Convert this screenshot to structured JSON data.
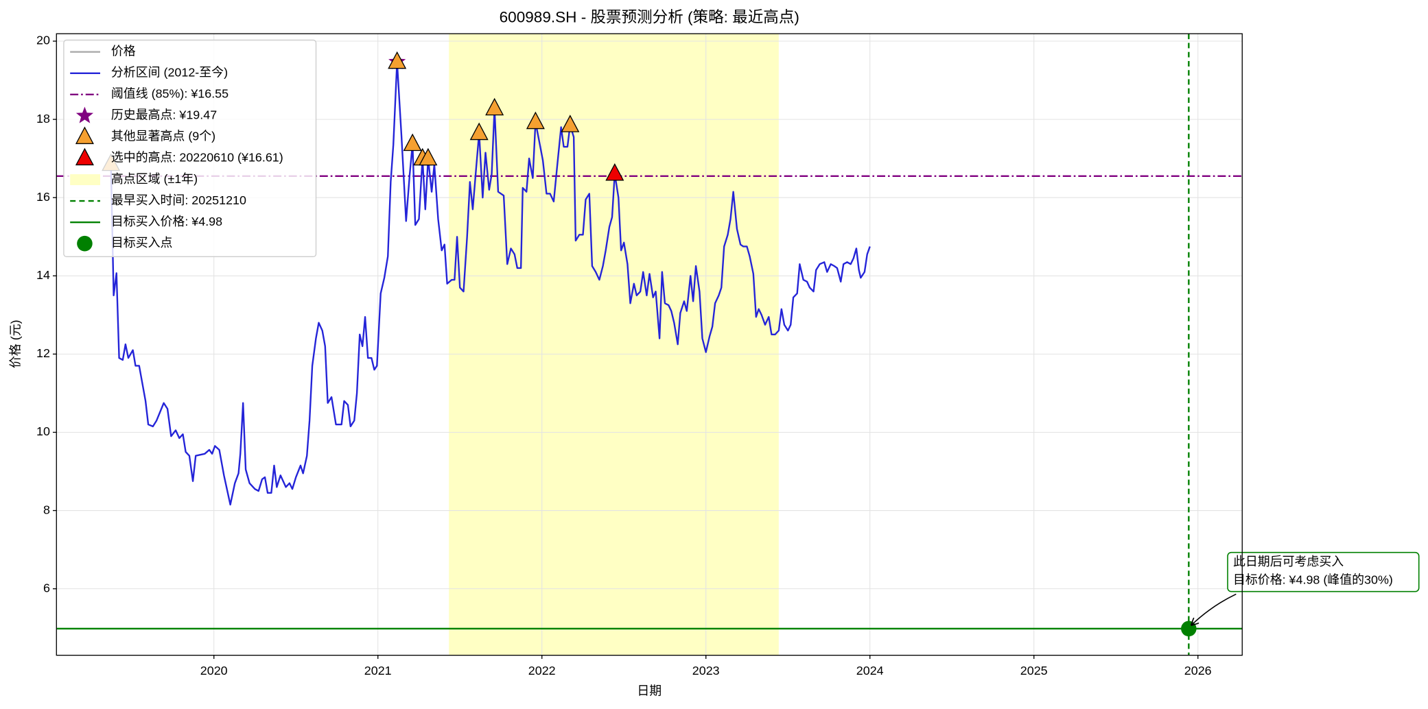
{
  "chart_data": {
    "type": "line",
    "title": "600989.SH  - 股票预测分析 (策略: 最近高点)",
    "xlabel": "日期",
    "ylabel": "价格 (元)",
    "xlim": [
      2019.04,
      2026.27
    ],
    "ylim": [
      4.3,
      20.19
    ],
    "xticks": [
      2020,
      2021,
      2022,
      2023,
      2024,
      2025,
      2026
    ],
    "yticks": [
      6,
      8,
      10,
      12,
      14,
      16,
      18,
      20
    ],
    "grid": true,
    "legend": "upper left",
    "series": [
      {
        "name": "价格",
        "color": "#aaaaaa"
      },
      {
        "name": "分析区间 (2012-至今)",
        "color": "#2424d8",
        "x": [
          2019.372,
          2019.389,
          2019.406,
          2019.422,
          2019.444,
          2019.461,
          2019.478,
          2019.506,
          2019.522,
          2019.544,
          2019.583,
          2019.6,
          2019.628,
          2019.65,
          2019.694,
          2019.717,
          2019.739,
          2019.767,
          2019.789,
          2019.811,
          2019.828,
          2019.85,
          2019.872,
          2019.889,
          2019.944,
          2019.972,
          2019.989,
          2020.006,
          2020.033,
          2020.061,
          2020.1,
          2020.128,
          2020.15,
          2020.161,
          2020.178,
          2020.194,
          2020.217,
          2020.25,
          2020.272,
          2020.294,
          2020.311,
          2020.328,
          2020.35,
          2020.367,
          2020.383,
          2020.406,
          2020.439,
          2020.461,
          2020.478,
          2020.5,
          2020.528,
          2020.544,
          2020.567,
          2020.583,
          2020.6,
          2020.622,
          2020.639,
          2020.661,
          2020.678,
          2020.694,
          2020.717,
          2020.744,
          2020.778,
          2020.794,
          2020.817,
          2020.833,
          2020.856,
          2020.872,
          2020.889,
          2020.906,
          2020.922,
          2020.939,
          2020.961,
          2020.978,
          2020.994,
          2021.017,
          2021.039,
          2021.061,
          2021.078,
          2021.094,
          2021.117,
          2021.144,
          2021.172,
          2021.194,
          2021.211,
          2021.228,
          2021.25,
          2021.272,
          2021.289,
          2021.306,
          2021.328,
          2021.344,
          2021.367,
          2021.389,
          2021.406,
          2021.422,
          2021.45,
          2021.467,
          2021.483,
          2021.5,
          2021.522,
          2021.544,
          2021.561,
          2021.578,
          2021.6,
          2021.617,
          2021.639,
          2021.656,
          2021.678,
          2021.694,
          2021.711,
          2021.733,
          2021.767,
          2021.789,
          2021.811,
          2021.833,
          2021.85,
          2021.872,
          2021.883,
          2021.906,
          2021.922,
          2021.944,
          2021.961,
          2021.983,
          2022.006,
          2022.028,
          2022.05,
          2022.072,
          2022.094,
          2022.117,
          2022.133,
          2022.156,
          2022.172,
          2022.194,
          2022.206,
          2022.228,
          2022.25,
          2022.267,
          2022.289,
          2022.306,
          2022.328,
          2022.35,
          2022.372,
          2022.389,
          2022.411,
          2022.428,
          2022.444,
          2022.467,
          2022.483,
          2022.5,
          2022.522,
          2022.539,
          2022.561,
          2022.578,
          2022.6,
          2022.617,
          2022.639,
          2022.656,
          2022.678,
          2022.694,
          2022.717,
          2022.733,
          2022.75,
          2022.772,
          2022.789,
          2022.806,
          2022.828,
          2022.844,
          2022.867,
          2022.883,
          2022.906,
          2022.922,
          2022.939,
          2022.961,
          2022.978,
          2023.0,
          2023.022,
          2023.039,
          2023.056,
          2023.078,
          2023.094,
          2023.111,
          2023.133,
          2023.15,
          2023.167,
          2023.189,
          2023.211,
          2023.228,
          2023.25,
          2023.267,
          2023.289,
          2023.306,
          2023.322,
          2023.339,
          2023.361,
          2023.383,
          2023.4,
          2023.422,
          2023.444,
          2023.461,
          2023.478,
          2023.5,
          2023.517,
          2023.533,
          2023.556,
          2023.572,
          2023.594,
          2023.617,
          2023.633,
          2023.656,
          2023.672,
          2023.694,
          2023.722,
          2023.739,
          2023.761,
          2023.783,
          2023.8,
          2023.822,
          2023.839,
          2023.861,
          2023.883,
          2023.9,
          2023.917,
          2023.933,
          2023.944,
          2023.967,
          2023.983,
          2024.0
        ],
        "values": [
          16.86,
          13.5,
          14.07,
          11.9,
          11.85,
          12.25,
          11.9,
          12.1,
          11.7,
          11.7,
          10.8,
          10.2,
          10.15,
          10.3,
          10.75,
          10.6,
          9.9,
          10.05,
          9.85,
          9.95,
          9.5,
          9.4,
          8.75,
          9.4,
          9.45,
          9.55,
          9.45,
          9.65,
          9.55,
          8.9,
          8.15,
          8.7,
          8.95,
          9.45,
          10.75,
          9.05,
          8.7,
          8.55,
          8.5,
          8.8,
          8.85,
          8.45,
          8.45,
          9.15,
          8.6,
          8.9,
          8.6,
          8.7,
          8.55,
          8.85,
          9.15,
          8.95,
          9.4,
          10.3,
          11.7,
          12.4,
          12.8,
          12.6,
          12.2,
          10.75,
          10.9,
          10.2,
          10.2,
          10.8,
          10.7,
          10.15,
          10.3,
          11.0,
          12.5,
          12.2,
          12.95,
          11.9,
          11.9,
          11.6,
          11.7,
          13.55,
          13.95,
          14.5,
          16.4,
          17.35,
          19.47,
          17.55,
          15.4,
          16.6,
          17.37,
          15.3,
          15.45,
          17.0,
          15.7,
          17.0,
          16.15,
          16.85,
          15.45,
          14.65,
          14.8,
          13.8,
          13.9,
          13.9,
          15.0,
          13.7,
          13.6,
          15.0,
          16.4,
          15.7,
          16.8,
          17.65,
          16.0,
          17.15,
          16.2,
          16.6,
          18.28,
          16.15,
          16.05,
          14.3,
          14.7,
          14.55,
          14.2,
          14.2,
          16.25,
          16.15,
          17.0,
          16.5,
          17.93,
          17.45,
          16.95,
          16.1,
          16.1,
          15.9,
          16.85,
          17.8,
          17.3,
          17.3,
          17.85,
          17.55,
          14.9,
          15.05,
          15.05,
          15.95,
          16.1,
          14.25,
          14.1,
          13.9,
          14.25,
          14.65,
          15.25,
          15.5,
          16.61,
          16.0,
          14.65,
          14.85,
          14.3,
          13.3,
          13.8,
          13.5,
          13.6,
          14.1,
          13.5,
          14.05,
          13.45,
          13.6,
          12.4,
          14.1,
          13.3,
          13.25,
          13.1,
          12.8,
          12.25,
          13.05,
          13.35,
          13.1,
          14.0,
          13.35,
          14.25,
          13.6,
          12.4,
          12.05,
          12.45,
          12.7,
          13.3,
          13.5,
          13.7,
          14.75,
          15.05,
          15.45,
          16.15,
          15.2,
          14.8,
          14.75,
          14.75,
          14.5,
          14.05,
          12.95,
          13.15,
          13.0,
          12.75,
          12.95,
          12.5,
          12.5,
          12.6,
          13.15,
          12.75,
          12.6,
          12.75,
          13.45,
          13.55,
          14.3,
          13.9,
          13.85,
          13.7,
          13.6,
          14.15,
          14.3,
          14.35,
          14.1,
          14.3,
          14.25,
          14.2,
          13.85,
          14.3,
          14.35,
          14.3,
          14.45,
          14.7,
          14.15,
          13.95,
          14.1,
          14.55,
          14.75
        ]
      }
    ],
    "threshold": {
      "name": "阈值线 (85%): ¥16.55",
      "value": 16.55,
      "color": "#800080"
    },
    "all_time_high": {
      "name": "历史最高点: ¥19.47",
      "x": 2021.117,
      "value": 19.47,
      "color": "#800080"
    },
    "other_peaks": {
      "name": "其他显著高点 (9个)",
      "color": "#f5a030",
      "x": [
        2019.372,
        2021.117,
        2021.211,
        2021.272,
        2021.306,
        2021.617,
        2021.711,
        2021.961,
        2022.172
      ],
      "values": [
        16.86,
        19.47,
        17.37,
        17.0,
        17.0,
        17.65,
        18.28,
        17.93,
        17.85
      ]
    },
    "selected_peak": {
      "name": "选中的高点: 20220610 (¥16.61)",
      "x": 2022.444,
      "value": 16.61,
      "color": "#ee0000"
    },
    "peak_zone": {
      "name": "高点区域 (±1年)",
      "xrange": [
        2021.433,
        2023.444
      ],
      "color": "#ffffc4"
    },
    "buy_time": {
      "name": "最早买入时间: 20251210",
      "x": 2025.944,
      "color": "#008000"
    },
    "target_price": {
      "name": "目标买入价格: ¥4.98",
      "value": 4.98,
      "color": "#008000"
    },
    "target_point": {
      "name": "目标买入点",
      "x": 2025.944,
      "value": 4.98,
      "color": "#008000"
    },
    "annotation": {
      "lines": [
        "此日期后可考虑买入",
        "目标价格: ¥4.98 (峰值的30%)"
      ]
    }
  }
}
